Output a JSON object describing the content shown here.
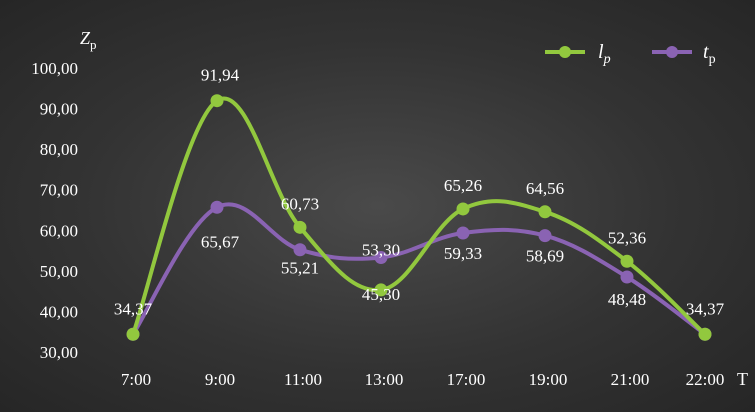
{
  "chart_data": {
    "type": "line",
    "title": "",
    "ylabel_main": "Z",
    "ylabel_sub": "p",
    "xlabel": "T",
    "categories": [
      "7:00",
      "9:00",
      "11:00",
      "13:00",
      "17:00",
      "19:00",
      "21:00",
      "22:00"
    ],
    "ylim": [
      30,
      100
    ],
    "yticks": [
      "30,00",
      "40,00",
      "50,00",
      "60,00",
      "70,00",
      "80,00",
      "90,00",
      "100,00"
    ],
    "grid": false,
    "smooth": true,
    "legend_position": "top-right",
    "series": [
      {
        "name_main": "l",
        "name_sub": "p",
        "color": "#92c83e",
        "values": [
          34.37,
          91.94,
          60.73,
          45.3,
          65.26,
          64.56,
          52.36,
          34.37
        ],
        "labels": [
          "34,37",
          "91,94",
          "60,73",
          "45,30",
          "65,26",
          "64,56",
          "52,36",
          "34,37"
        ]
      },
      {
        "name_main": "t",
        "name_sub": "p",
        "color": "#8a63b3",
        "values": [
          34.37,
          65.67,
          55.21,
          53.3,
          59.33,
          58.69,
          48.48,
          34.37
        ],
        "labels": [
          "34,37",
          "65,67",
          "55,21",
          "53,30",
          "59,33",
          "58,69",
          "48,48",
          "34,37"
        ]
      }
    ]
  }
}
